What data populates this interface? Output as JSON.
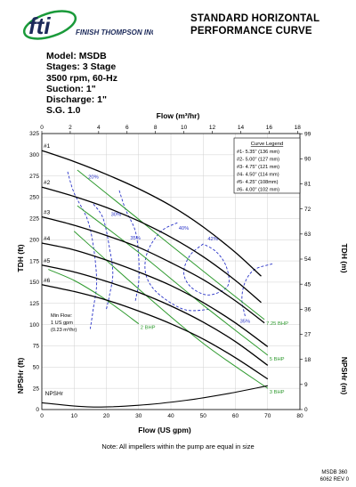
{
  "header": {
    "company": "FINISH THOMPSON INC.",
    "logo_mark": "fti",
    "title_line1": "STANDARD HORIZONTAL",
    "title_line2": "PERFORMANCE CURVE"
  },
  "specs": {
    "model": "Model: MSDB",
    "stages": "Stages: 3 Stage",
    "speed": "3500 rpm, 60-Hz",
    "suction": "Suction: 1\"",
    "discharge": "Discharge: 1\"",
    "sg": "S.G. 1.0"
  },
  "colors": {
    "head_curve": "#000000",
    "bhp_curve": "#2e9a2e",
    "efficiency_curve": "#2a34c8",
    "logo_green": "#1a9a3a",
    "logo_dark": "#1c2a5a"
  },
  "chart_data": {
    "type": "line",
    "xlabel_bottom": "Flow (US gpm)",
    "xlabel_top": "Flow (m³/hr)",
    "ylabel_left": "TDH (ft)",
    "ylabel_right": "TDH (m)",
    "ylabel_left_lower": "NPSHr (ft)",
    "ylabel_right_lower": "NPSHr (m)",
    "xlim": [
      0,
      80
    ],
    "ylim": [
      0,
      325
    ],
    "x_ticks": [
      0,
      10,
      20,
      30,
      40,
      50,
      60,
      70,
      80
    ],
    "y_ticks": [
      0,
      25,
      50,
      75,
      100,
      125,
      150,
      175,
      200,
      225,
      250,
      275,
      300,
      325
    ],
    "top_ticks": [
      0,
      2,
      4,
      6,
      8,
      10,
      12,
      14,
      16,
      18
    ],
    "right_ticks": [
      0,
      9,
      18,
      27,
      36,
      45,
      54,
      63,
      72,
      81,
      90,
      99
    ],
    "grid": true,
    "legend": {
      "title": "Curve Legend",
      "position": "top-right",
      "entries": [
        "#1- 5.35\" (136 mm)",
        "#2- 5.00\" (127 mm)",
        "#3- 4.75\" (121 mm)",
        "#4- 4.50\" (114 mm)",
        "#5- 4.25\" (108mm)",
        "#6- 4.00\" (102 mm)"
      ]
    },
    "head_curves": [
      {
        "name": "#1",
        "points": [
          [
            0,
            305
          ],
          [
            10,
            292
          ],
          [
            20,
            277
          ],
          [
            30,
            260
          ],
          [
            40,
            240
          ],
          [
            50,
            215
          ],
          [
            60,
            185
          ],
          [
            68,
            157
          ]
        ]
      },
      {
        "name": "#2",
        "points": [
          [
            0,
            262
          ],
          [
            10,
            251
          ],
          [
            20,
            238
          ],
          [
            30,
            222
          ],
          [
            40,
            203
          ],
          [
            50,
            180
          ],
          [
            60,
            152
          ],
          [
            68,
            126
          ]
        ]
      },
      {
        "name": "#3",
        "points": [
          [
            0,
            227
          ],
          [
            10,
            217
          ],
          [
            20,
            205
          ],
          [
            30,
            191
          ],
          [
            40,
            173
          ],
          [
            50,
            153
          ],
          [
            60,
            128
          ],
          [
            69,
            102
          ]
        ]
      },
      {
        "name": "#4",
        "points": [
          [
            0,
            196
          ],
          [
            10,
            188
          ],
          [
            20,
            176
          ],
          [
            30,
            162
          ],
          [
            40,
            146
          ],
          [
            50,
            126
          ],
          [
            60,
            102
          ],
          [
            70,
            74
          ]
        ]
      },
      {
        "name": "#5",
        "points": [
          [
            0,
            170
          ],
          [
            10,
            162
          ],
          [
            20,
            151
          ],
          [
            30,
            138
          ],
          [
            40,
            122
          ],
          [
            50,
            103
          ],
          [
            60,
            80
          ],
          [
            70,
            52
          ]
        ]
      },
      {
        "name": "#6",
        "points": [
          [
            0,
            147
          ],
          [
            10,
            139
          ],
          [
            20,
            129
          ],
          [
            30,
            116
          ],
          [
            40,
            101
          ],
          [
            50,
            83
          ],
          [
            60,
            61
          ],
          [
            70,
            36
          ]
        ]
      }
    ],
    "npshr_curve": {
      "name": "NPSHr",
      "points": [
        [
          0,
          8
        ],
        [
          15,
          3
        ],
        [
          30,
          5
        ],
        [
          45,
          11
        ],
        [
          58,
          19
        ],
        [
          70,
          28
        ]
      ]
    },
    "bhp_lines": [
      {
        "name": "7.25 BHP",
        "points": [
          [
            11,
            282
          ],
          [
            30,
            224
          ],
          [
            50,
            163
          ],
          [
            69,
            106
          ]
        ]
      },
      {
        "name": "5 BHP",
        "points": [
          [
            11,
            240
          ],
          [
            30,
            185
          ],
          [
            50,
            123
          ],
          [
            70,
            64
          ]
        ]
      },
      {
        "name": "3 BHP",
        "points": [
          [
            10,
            210
          ],
          [
            30,
            142
          ],
          [
            50,
            78
          ],
          [
            70,
            25
          ]
        ]
      },
      {
        "name": "2 BHP",
        "points": [
          [
            2,
            165
          ],
          [
            10,
            152
          ],
          [
            18,
            134
          ],
          [
            24,
            118
          ],
          [
            30,
            101
          ]
        ]
      }
    ],
    "efficiency_lines": [
      {
        "name": "20%",
        "points": [
          [
            8,
            280
          ],
          [
            10,
            255
          ],
          [
            14,
            225
          ],
          [
            16,
            192
          ],
          [
            17,
            150
          ],
          [
            16,
            120
          ],
          [
            15,
            95
          ]
        ]
      },
      {
        "name": "30%",
        "points": [
          [
            16,
            242
          ],
          [
            19,
            225
          ],
          [
            21,
            190
          ],
          [
            22,
            160
          ],
          [
            21,
            135
          ],
          [
            20,
            118
          ]
        ]
      },
      {
        "name": "35%",
        "points": [
          [
            24,
            258
          ],
          [
            26,
            235
          ],
          [
            29,
            210
          ],
          [
            30,
            180
          ],
          [
            30,
            150
          ],
          [
            29,
            128
          ]
        ]
      },
      {
        "name": "40%",
        "points": [
          [
            42,
            220
          ],
          [
            37,
            210
          ],
          [
            33,
            188
          ],
          [
            32,
            165
          ],
          [
            34,
            145
          ],
          [
            39,
            128
          ],
          [
            45,
            117
          ],
          [
            52,
            118
          ]
        ]
      },
      {
        "name": "42%",
        "points": [
          [
            50,
            195
          ],
          [
            46,
            182
          ],
          [
            44,
            162
          ],
          [
            46,
            145
          ],
          [
            51,
            135
          ],
          [
            56,
            140
          ],
          [
            58,
            150
          ],
          [
            57,
            170
          ],
          [
            54,
            186
          ],
          [
            50,
            195
          ]
        ]
      },
      {
        "name": "35%",
        "points": [
          [
            63,
            110
          ],
          [
            62,
            130
          ],
          [
            63,
            150
          ],
          [
            66,
            165
          ],
          [
            72,
            172
          ]
        ]
      }
    ],
    "annotations": {
      "min_flow_line1": "Min Flow:",
      "min_flow_line2": "1 US gpm",
      "min_flow_line3": "(0.23 m³/hr)"
    }
  },
  "footer": {
    "note": "Note: All impellers within the pump are equal in size",
    "doc_number_line1": "MSDB 360",
    "doc_number_line2": "6062 REV 0"
  }
}
